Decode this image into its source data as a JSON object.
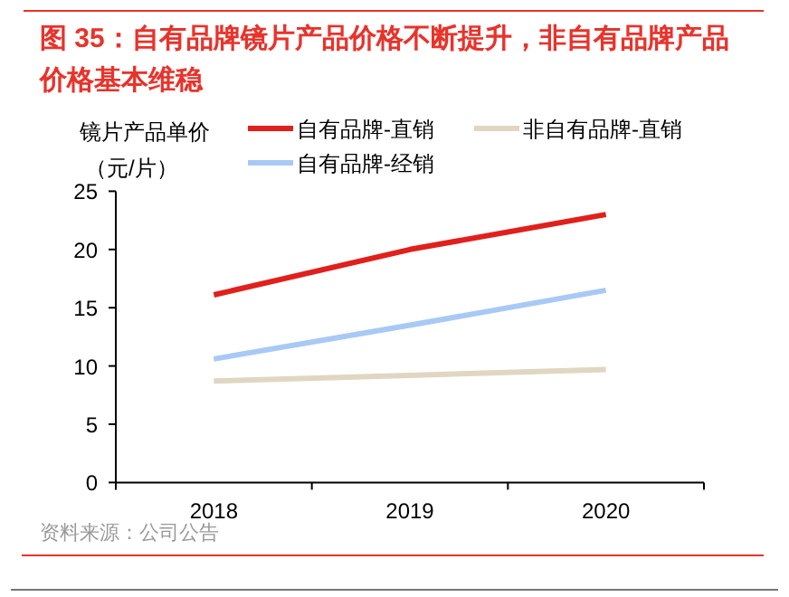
{
  "chart_data": {
    "type": "line",
    "title": "图 35：自有品牌镜片产品价格不断提升，非自有品牌产品价格基本维稳",
    "ylabel": "镜片产品单价（元/片）",
    "categories": [
      "2018",
      "2019",
      "2020"
    ],
    "series": [
      {
        "name": "自有品牌-直销",
        "color": "#e0201c",
        "values": [
          16.1,
          20.0,
          23.0
        ]
      },
      {
        "name": "非自有品牌-直销",
        "color": "#e0d6c2",
        "values": [
          8.7,
          9.2,
          9.7
        ]
      },
      {
        "name": "自有品牌-经销",
        "color": "#a9c9f5",
        "values": [
          10.6,
          13.5,
          16.5
        ]
      }
    ],
    "ylim": [
      0,
      25
    ],
    "yticks": [
      0,
      5,
      10,
      15,
      20,
      25
    ],
    "grid": false,
    "legend": "top",
    "marker": "none",
    "line_style": "solid",
    "annotations": [
      "资料来源：公司公告"
    ]
  }
}
